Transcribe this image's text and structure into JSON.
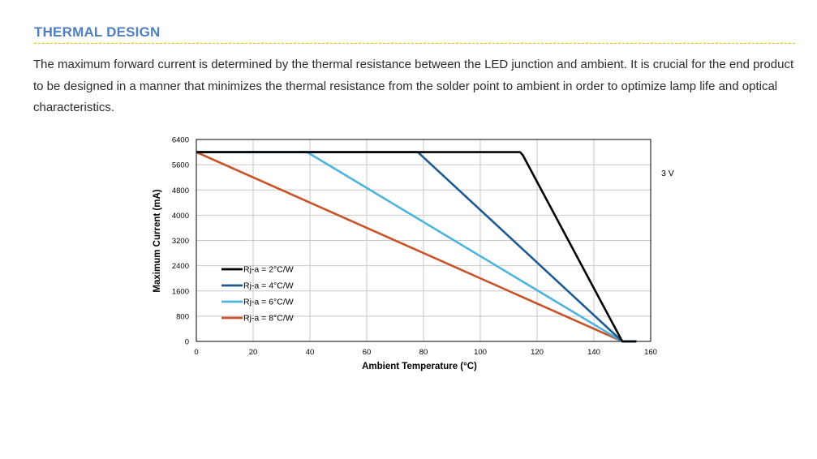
{
  "section": {
    "title": "THERMAL DESIGN",
    "body": "The maximum forward current is determined by the thermal resistance between the LED junction and ambient. It is crucial for the end product to be designed in a manner that minimizes the thermal resistance from the solder point to ambient in order to optimize lamp life and optical characteristics."
  },
  "colors": {
    "title": "#4f7fbf",
    "divider": "#e6c200",
    "grid": "#c8c8c8"
  },
  "chart_data": {
    "type": "line",
    "xlabel": "Ambient Temperature (°C)",
    "ylabel": "Maximum Current (mA)",
    "annotation": "3 V",
    "xlim": [
      0,
      160
    ],
    "ylim": [
      0,
      6400
    ],
    "xticks": [
      0,
      20,
      40,
      60,
      80,
      100,
      120,
      140,
      160
    ],
    "yticks": [
      0,
      800,
      1600,
      2400,
      3200,
      4000,
      4800,
      5600,
      6400
    ],
    "grid": true,
    "legend_position": "bottom-left",
    "series": [
      {
        "name": "Rj-a = 2°C/W",
        "color": "#000000",
        "points": [
          [
            0,
            6000
          ],
          [
            114,
            6000
          ],
          [
            115,
            5900
          ],
          [
            150,
            0
          ],
          [
            155,
            0
          ]
        ]
      },
      {
        "name": "Rj-a = 4°C/W",
        "color": "#1f5a8f",
        "points": [
          [
            0,
            6000
          ],
          [
            78,
            6000
          ],
          [
            150,
            0
          ],
          [
            155,
            0
          ]
        ]
      },
      {
        "name": "Rj-a = 6°C/W",
        "color": "#4fb3dc",
        "points": [
          [
            0,
            6000
          ],
          [
            39,
            6000
          ],
          [
            150,
            0
          ],
          [
            155,
            0
          ]
        ]
      },
      {
        "name": "Rj-a = 8°C/W",
        "color": "#c8532a",
        "points": [
          [
            0,
            6000
          ],
          [
            150,
            0
          ],
          [
            155,
            0
          ]
        ]
      }
    ]
  }
}
